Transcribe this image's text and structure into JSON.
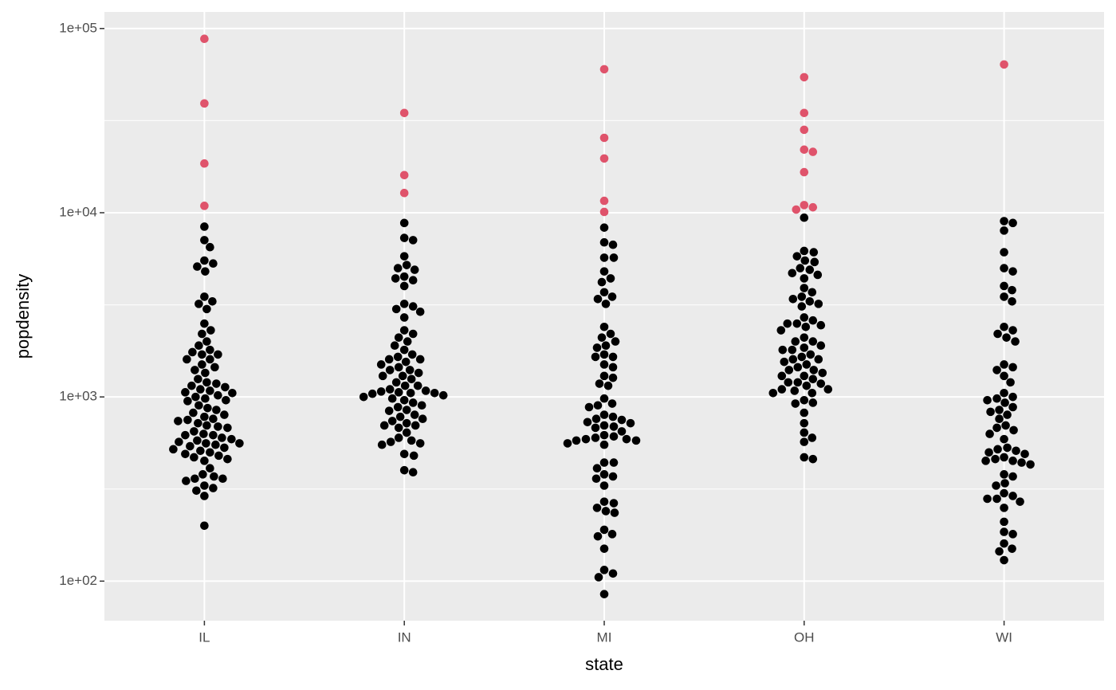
{
  "chart_data": {
    "type": "scatter",
    "x_label": "state",
    "y_label": "popdensity",
    "categories": [
      "IL",
      "IN",
      "MI",
      "OH",
      "WI"
    ],
    "log_y": true,
    "grid": true,
    "ylim": [
      61,
      123000
    ],
    "yticks": [
      {
        "value": 100,
        "label": "1e+02"
      },
      {
        "value": 1000,
        "label": "1e+03"
      },
      {
        "value": 10000,
        "label": "1e+04"
      },
      {
        "value": 100000,
        "label": "1e+05"
      }
    ],
    "minor_yticks": [
      316.2,
      3162,
      31623
    ],
    "series": [
      {
        "color": "#000000",
        "values": [
          [
            8400,
            7100,
            6500,
            5500,
            5300,
            5100,
            4800,
            3500,
            3300,
            3200,
            3000,
            2500,
            2300,
            2200,
            2000,
            1900,
            1800,
            1750,
            1700,
            1700,
            1600,
            1600,
            1500,
            1450,
            1400,
            1350,
            1250,
            1200,
            1180,
            1150,
            1130,
            1100,
            1080,
            1060,
            1050,
            1020,
            1000,
            980,
            960,
            950,
            900,
            870,
            850,
            820,
            800,
            780,
            760,
            750,
            740,
            720,
            700,
            690,
            680,
            650,
            630,
            620,
            620,
            600,
            590,
            580,
            570,
            560,
            560,
            550,
            540,
            530,
            520,
            510,
            500,
            490,
            480,
            470,
            460,
            450,
            410,
            380,
            370,
            360,
            360,
            350,
            330,
            320,
            310,
            290,
            200
          ],
          [
            8800,
            7300,
            7100,
            5800,
            5200,
            5000,
            4900,
            4500,
            4400,
            4300,
            4000,
            3200,
            3100,
            3000,
            2900,
            2700,
            2300,
            2200,
            2100,
            2000,
            1900,
            1800,
            1700,
            1650,
            1600,
            1600,
            1550,
            1500,
            1450,
            1400,
            1400,
            1350,
            1300,
            1300,
            1250,
            1200,
            1150,
            1150,
            1100,
            1080,
            1070,
            1060,
            1050,
            1050,
            1040,
            1020,
            1000,
            980,
            960,
            930,
            900,
            880,
            850,
            840,
            800,
            780,
            760,
            740,
            720,
            700,
            700,
            680,
            640,
            600,
            580,
            570,
            560,
            550,
            490,
            480,
            400,
            390
          ],
          [
            8300,
            6900,
            6700,
            5700,
            5700,
            4800,
            4400,
            4200,
            3700,
            3500,
            3400,
            3200,
            2400,
            2200,
            2100,
            2000,
            1900,
            1850,
            1700,
            1650,
            1650,
            1500,
            1450,
            1300,
            1270,
            1180,
            1150,
            980,
            920,
            900,
            880,
            800,
            780,
            760,
            750,
            730,
            720,
            700,
            690,
            680,
            650,
            620,
            610,
            600,
            590,
            590,
            580,
            580,
            560,
            550,
            440,
            440,
            410,
            380,
            370,
            360,
            330,
            270,
            265,
            250,
            240,
            235,
            190,
            180,
            175,
            150,
            115,
            110,
            105,
            85
          ],
          [
            9400,
            6200,
            6100,
            5800,
            5500,
            5400,
            5000,
            4900,
            4700,
            4600,
            4400,
            3900,
            3700,
            3500,
            3400,
            3300,
            3200,
            3100,
            2700,
            2600,
            2500,
            2500,
            2450,
            2400,
            2300,
            2100,
            2000,
            2000,
            1900,
            1850,
            1800,
            1800,
            1700,
            1650,
            1600,
            1600,
            1550,
            1500,
            1450,
            1400,
            1400,
            1350,
            1300,
            1300,
            1250,
            1200,
            1200,
            1180,
            1150,
            1100,
            1100,
            1080,
            1050,
            1050,
            960,
            930,
            920,
            820,
            720,
            640,
            600,
            570,
            470,
            460
          ],
          [
            9000,
            8800,
            8000,
            6100,
            5000,
            4800,
            4000,
            3800,
            3500,
            3300,
            2400,
            2300,
            2200,
            2100,
            2000,
            1500,
            1450,
            1400,
            1300,
            1200,
            1050,
            1000,
            980,
            960,
            930,
            880,
            850,
            830,
            800,
            760,
            700,
            680,
            660,
            630,
            590,
            530,
            520,
            510,
            500,
            490,
            470,
            460,
            450,
            450,
            440,
            430,
            380,
            370,
            340,
            330,
            300,
            290,
            280,
            280,
            270,
            250,
            210,
            185,
            180,
            160,
            150,
            145,
            130
          ]
        ]
      },
      {
        "color": "#df536b",
        "values": [
          [
            87900,
            39200,
            18500,
            10900
          ],
          [
            34800,
            16000,
            12800
          ],
          [
            60100,
            25500,
            19700,
            11600,
            10100
          ],
          [
            54400,
            34800,
            28200,
            22000,
            21400,
            16600,
            11000,
            10700,
            10400
          ],
          [
            63800
          ]
        ]
      }
    ]
  }
}
